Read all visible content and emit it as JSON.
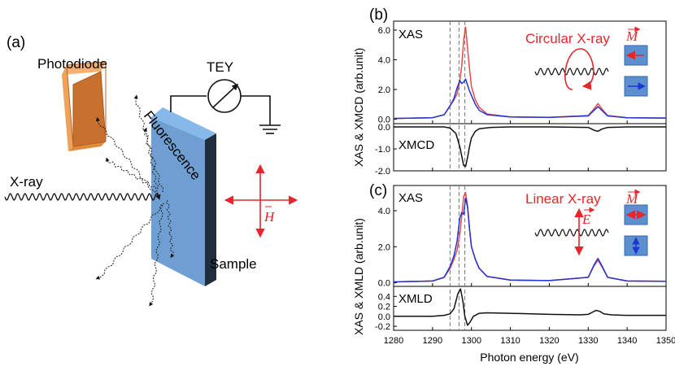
{
  "setup": {
    "panel_label": "(a)",
    "photodiode_label": "Photodiode",
    "tey_label": "TEY",
    "fluorescence_label": "Fluorescence",
    "xray_label": "X-ray",
    "sample_label": "Sample",
    "field_label": "H",
    "colors": {
      "sample_face": "#6f9fd2",
      "sample_top": "#86b8ea",
      "sample_side": "#1f2d3d",
      "diode_face": "#c8702e",
      "diode_light": "#f0a25a",
      "field": "#e8252a"
    }
  },
  "chart_data": [
    {
      "type": "line",
      "panel": "(b)",
      "title": "",
      "xlabel": "Photon energy (eV)",
      "ylabel": "XAS & XMCD (arb.unit)",
      "xlim": [
        1280,
        1350
      ],
      "x_ticks": [
        1280,
        1290,
        1300,
        1310,
        1320,
        1330,
        1340,
        1350
      ],
      "vlines": [
        1294.5,
        1296.8,
        1298.3
      ],
      "annotation": "Circular X-ray",
      "magnet_label": "M",
      "subplots": [
        {
          "label": "XAS",
          "ylim": [
            -0.3,
            6.6
          ],
          "y_ticks": [
            0.0,
            2.0,
            4.0,
            6.0
          ],
          "y_tick_labels": [
            "0.0",
            "2.0",
            "4.0",
            "6.0"
          ],
          "series": [
            {
              "name": "red",
              "color": "#e8494b",
              "x": [
                1280,
                1290,
                1293,
                1294.5,
                1295.5,
                1296.3,
                1297,
                1297.5,
                1298,
                1298.5,
                1299,
                1299.5,
                1300,
                1301,
                1302,
                1304,
                1310,
                1320,
                1330,
                1331.5,
                1332.5,
                1333.5,
                1335,
                1340,
                1350
              ],
              "y": [
                0.05,
                0.1,
                0.3,
                0.9,
                1.3,
                1.7,
                2.6,
                3.6,
                5.3,
                6.2,
                4.8,
                3.4,
                2.2,
                1.3,
                0.8,
                0.35,
                0.15,
                0.12,
                0.25,
                0.7,
                1.05,
                0.7,
                0.25,
                0.1,
                0.08
              ]
            },
            {
              "name": "blue",
              "color": "#1f35d4",
              "x": [
                1280,
                1290,
                1293,
                1294.5,
                1295.5,
                1296.3,
                1297,
                1297.5,
                1298,
                1298.5,
                1299,
                1299.5,
                1300,
                1301,
                1302,
                1304,
                1310,
                1320,
                1330,
                1331.5,
                1332.5,
                1333.5,
                1335,
                1340,
                1350
              ],
              "y": [
                0.05,
                0.1,
                0.3,
                0.9,
                1.4,
                2.1,
                2.6,
                2.4,
                2.5,
                2.7,
                2.3,
                1.9,
                1.6,
                1.0,
                0.6,
                0.3,
                0.15,
                0.12,
                0.22,
                0.6,
                0.85,
                0.6,
                0.22,
                0.1,
                0.08
              ]
            }
          ]
        },
        {
          "label": "XMCD",
          "ylim": [
            -2.0,
            0.15
          ],
          "y_ticks": [
            0.0,
            -1.0,
            -2.0
          ],
          "y_tick_labels": [
            "0.0",
            "-1.0",
            "-2.0"
          ],
          "series": [
            {
              "name": "XMCD",
              "color": "#111111",
              "x": [
                1280,
                1290,
                1293,
                1294.5,
                1296,
                1297,
                1298,
                1298.5,
                1299,
                1299.5,
                1300,
                1301,
                1302,
                1305,
                1310,
                1320,
                1330,
                1331.5,
                1332.5,
                1333.5,
                1335,
                1340,
                1350
              ],
              "y": [
                0.0,
                0.0,
                0.0,
                -0.05,
                -0.3,
                -0.9,
                -1.75,
                -1.8,
                -1.4,
                -0.9,
                -0.5,
                -0.2,
                -0.08,
                -0.02,
                0.0,
                0.0,
                -0.02,
                -0.15,
                -0.2,
                -0.1,
                -0.02,
                0.0,
                0.0
              ]
            }
          ]
        }
      ]
    },
    {
      "type": "line",
      "panel": "(c)",
      "title": "",
      "xlabel": "Photon energy (eV)",
      "ylabel": "XAS & XMLD (arb.unit)",
      "xlim": [
        1280,
        1350
      ],
      "x_ticks": [
        1280,
        1290,
        1300,
        1310,
        1320,
        1330,
        1340,
        1350
      ],
      "x_tick_labels": [
        "1280",
        "1290",
        "1300",
        "1310",
        "1320",
        "1330",
        "1340",
        "1350"
      ],
      "vlines": [
        1294.5,
        1296.8,
        1298.3
      ],
      "annotation": "Linear X-ray",
      "field_label": "E",
      "magnet_label": "M",
      "subplots": [
        {
          "label": "XAS",
          "ylim": [
            -0.2,
            5.4
          ],
          "y_ticks": [
            0.0,
            2.0,
            4.0
          ],
          "y_tick_labels": [
            "0.0",
            "2.0",
            "4.0"
          ],
          "series": [
            {
              "name": "red",
              "color": "#e8494b",
              "x": [
                1280,
                1290,
                1293,
                1294.5,
                1295.5,
                1296.3,
                1297,
                1297.5,
                1298,
                1298.5,
                1299,
                1299.5,
                1300,
                1301,
                1302,
                1304,
                1310,
                1320,
                1330,
                1331.5,
                1332.5,
                1333.5,
                1335,
                1340,
                1350
              ],
              "y": [
                0.05,
                0.1,
                0.3,
                0.8,
                1.3,
                1.8,
                2.7,
                3.7,
                4.8,
                5.0,
                4.3,
                3.0,
                2.0,
                1.3,
                0.8,
                0.35,
                0.15,
                0.12,
                0.3,
                0.95,
                1.25,
                0.9,
                0.3,
                0.1,
                0.08
              ]
            },
            {
              "name": "blue",
              "color": "#1f35d4",
              "x": [
                1280,
                1290,
                1293,
                1294.5,
                1295.5,
                1296.3,
                1297,
                1297.5,
                1298,
                1298.5,
                1299,
                1299.5,
                1300,
                1301,
                1302,
                1304,
                1310,
                1320,
                1330,
                1331.5,
                1332.5,
                1333.5,
                1335,
                1340,
                1350
              ],
              "y": [
                0.05,
                0.1,
                0.3,
                0.9,
                1.5,
                2.3,
                3.6,
                3.9,
                3.8,
                4.7,
                4.2,
                3.0,
                2.0,
                1.3,
                0.8,
                0.35,
                0.15,
                0.12,
                0.3,
                1.0,
                1.35,
                0.95,
                0.3,
                0.1,
                0.08
              ]
            }
          ]
        },
        {
          "label": "XMLD",
          "ylim": [
            -0.28,
            0.6
          ],
          "y_ticks": [
            0.4,
            0.2,
            0.0,
            -0.2
          ],
          "y_tick_labels": [
            "0.4",
            "0.2",
            "0.0",
            "-0.2"
          ],
          "series": [
            {
              "name": "XMLD",
              "color": "#111111",
              "x": [
                1280,
                1290,
                1293,
                1294.5,
                1295.5,
                1296.5,
                1297.2,
                1297.8,
                1298.3,
                1299,
                1299.6,
                1300.5,
                1302,
                1304,
                1310,
                1320,
                1328,
                1330,
                1332,
                1333,
                1334,
                1336,
                1340,
                1350
              ],
              "y": [
                0.0,
                0.0,
                0.02,
                0.05,
                0.15,
                0.45,
                0.55,
                0.3,
                0.0,
                -0.18,
                -0.12,
                0.0,
                0.06,
                0.07,
                0.06,
                0.04,
                0.03,
                0.04,
                0.12,
                0.1,
                0.05,
                0.03,
                0.02,
                0.02
              ]
            }
          ]
        }
      ]
    }
  ]
}
